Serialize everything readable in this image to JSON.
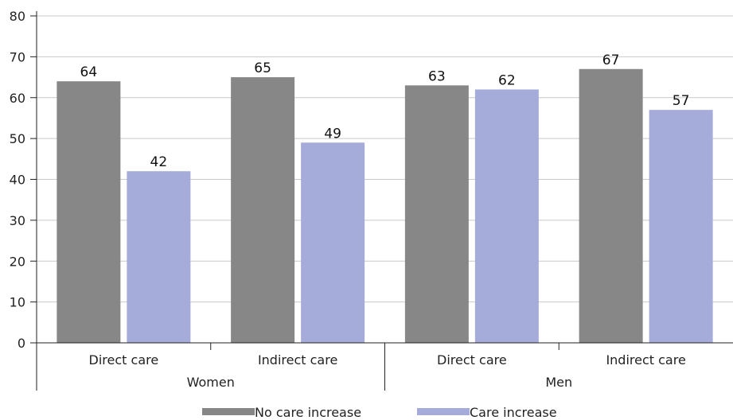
{
  "chart_data": {
    "type": "bar",
    "title": "",
    "xlabel": "",
    "ylabel": "",
    "ylim": [
      0,
      80
    ],
    "yticks": [
      0,
      10,
      20,
      30,
      40,
      50,
      60,
      70,
      80
    ],
    "grid": true,
    "legend_position": "bottom",
    "groups": [
      {
        "label": "Women",
        "categories": [
          "Direct care",
          "Indirect care"
        ]
      },
      {
        "label": "Men",
        "categories": [
          "Direct care",
          "Indirect care"
        ]
      }
    ],
    "categories": [
      "Direct care",
      "Indirect care",
      "Direct care",
      "Indirect care"
    ],
    "series": [
      {
        "name": "No care increase",
        "color": "#878787",
        "values": [
          64,
          65,
          63,
          67
        ]
      },
      {
        "name": "Care increase",
        "color": "#a6acd9",
        "values": [
          42,
          49,
          62,
          57
        ]
      }
    ]
  }
}
